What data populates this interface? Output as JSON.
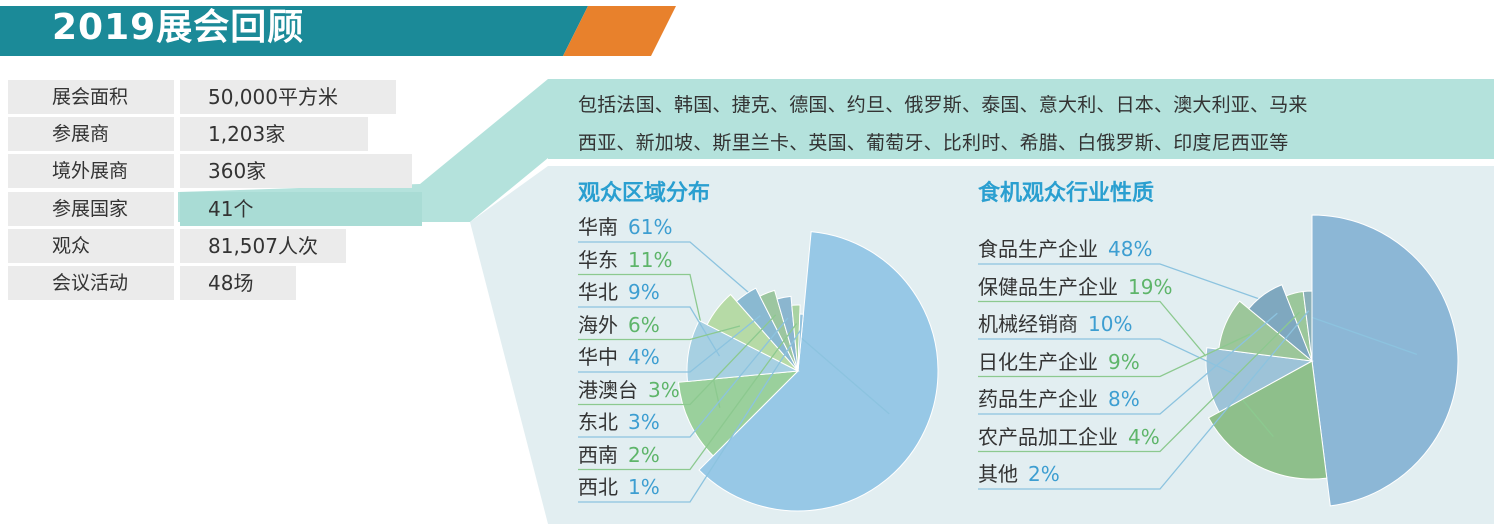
{
  "title": "2019展会回顾",
  "colors": {
    "teal": "#1b8a98",
    "orange": "#e8812c",
    "panel_light": "#b4e2dc",
    "panel_bg": "#e2eef1"
  },
  "stats": [
    {
      "label": "展会面积",
      "value": "50,000平方米"
    },
    {
      "label": "参展商",
      "value": "1,203家"
    },
    {
      "label": "境外展商",
      "value": "360家"
    },
    {
      "label": "参展国家",
      "value": "41个"
    },
    {
      "label": "观众",
      "value": "81,507人次"
    },
    {
      "label": "会议活动",
      "value": "48场"
    }
  ],
  "countries_line1": "包括法国、韩国、捷克、德国、约旦、俄罗斯、泰国、意大利、日本、澳大利亚、马来",
  "countries_line2": "西亚、新加坡、斯里兰卡、英国、葡萄牙、比利时、希腊、白俄罗斯、印度尼西亚等",
  "chart_data": [
    {
      "type": "pie",
      "title": "观众区域分布",
      "categories": [
        "华南",
        "华东",
        "华北",
        "海外",
        "华中",
        "港澳台",
        "东北",
        "西南",
        "西北"
      ],
      "values": [
        61,
        11,
        9,
        6,
        4,
        3,
        3,
        2,
        1
      ],
      "labels": [
        "61%",
        "11%",
        "9%",
        "6%",
        "4%",
        "3%",
        "3%",
        "2%",
        "1%"
      ],
      "colors": [
        "#97c8e6",
        "#9ad09c",
        "#a7d0e2",
        "#b6daa6",
        "#8ab9d1",
        "#9cc6a0",
        "#8bb6cf",
        "#a9d3a2",
        "#96c3de"
      ],
      "label_colors": [
        "#3d9ed1",
        "#5eb56a",
        "#3d9ed1",
        "#5eb56a",
        "#3d9ed1",
        "#5eb56a",
        "#3d9ed1",
        "#5eb56a",
        "#3d9ed1"
      ]
    },
    {
      "type": "pie",
      "title": "食机观众行业性质",
      "categories": [
        "食品生产企业",
        "保健品生产企业",
        "机械经销商",
        "日化生产企业",
        "药品生产企业",
        "农产品加工企业",
        "其他"
      ],
      "values": [
        48,
        19,
        10,
        9,
        8,
        4,
        2
      ],
      "labels": [
        "48%",
        "19%",
        "10%",
        "9%",
        "8%",
        "4%",
        "2%"
      ],
      "colors": [
        "#8cb7d6",
        "#8ebf8b",
        "#9dc3d8",
        "#9cc69a",
        "#7fa8bf",
        "#9bc79b",
        "#8ab0ba"
      ],
      "label_colors": [
        "#3d9ed1",
        "#5eb56a",
        "#3d9ed1",
        "#5eb56a",
        "#3d9ed1",
        "#5eb56a",
        "#3d9ed1"
      ]
    }
  ]
}
